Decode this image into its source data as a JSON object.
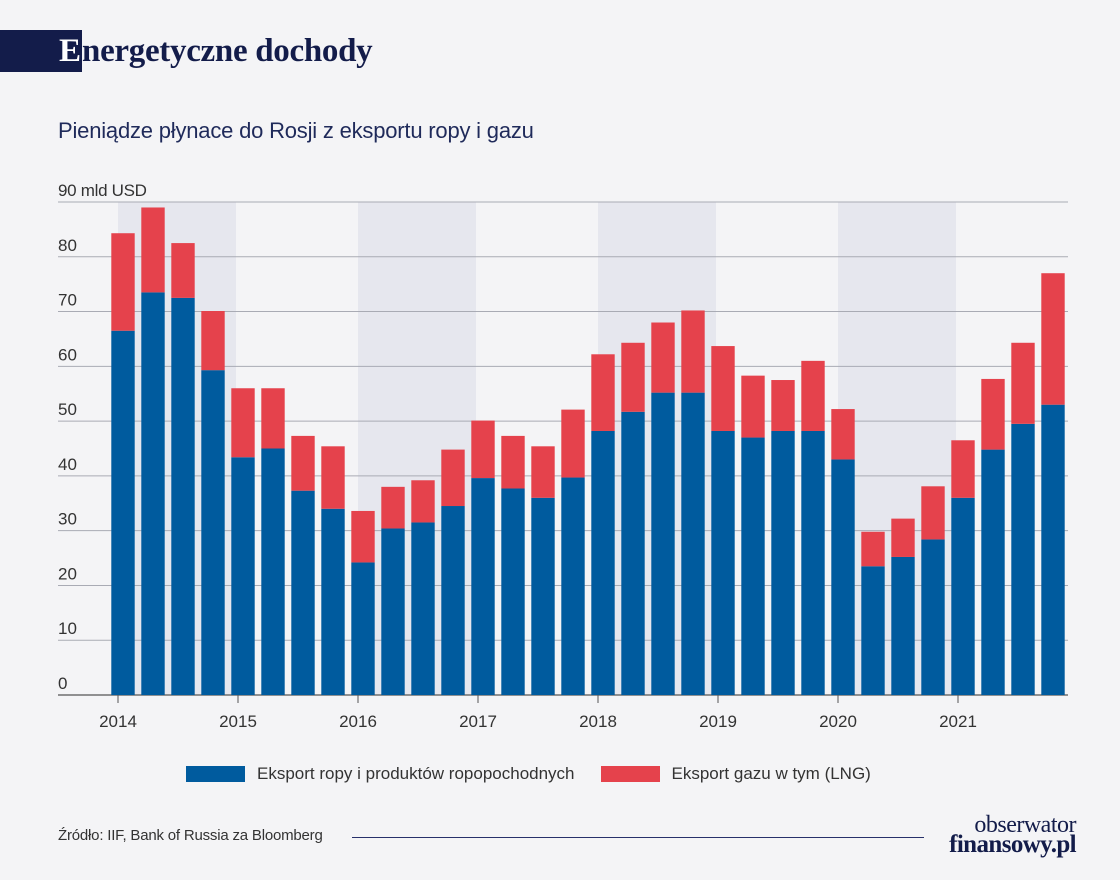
{
  "header": {
    "title_first_letter": "E",
    "title_rest": "nergetyczne dochody",
    "subtitle": "Pieniądze płynace do Rosji z eksportu ropy i gazu"
  },
  "chart_data": {
    "type": "bar",
    "stacked": true,
    "unit_label": "90 mld USD",
    "ylim": [
      0,
      90
    ],
    "yticks": [
      "0",
      "10",
      "20",
      "30",
      "40",
      "50",
      "60",
      "70",
      "80"
    ],
    "xticks": [
      "2014",
      "2015",
      "2016",
      "2017",
      "2018",
      "2019",
      "2020",
      "2021"
    ],
    "grid": true,
    "shaded_years": [
      "2014",
      "2016",
      "2018",
      "2020"
    ],
    "categories": [
      "2014 Q1",
      "2014 Q2",
      "2014 Q3",
      "2014 Q4",
      "2015 Q1",
      "2015 Q2",
      "2015 Q3",
      "2015 Q4",
      "2016 Q1",
      "2016 Q2",
      "2016 Q3",
      "2016 Q4",
      "2017 Q1",
      "2017 Q2",
      "2017 Q3",
      "2017 Q4",
      "2018 Q1",
      "2018 Q2",
      "2018 Q3",
      "2018 Q4",
      "2019 Q1",
      "2019 Q2",
      "2019 Q3",
      "2019 Q4",
      "2020 Q1",
      "2020 Q2",
      "2020 Q3",
      "2020 Q4",
      "2021 Q1",
      "2021 Q2",
      "2021 Q3",
      "2021 Q4"
    ],
    "series": [
      {
        "name": "Eksport ropy i produktów ropopochodnych",
        "color": "#005b9e",
        "values": [
          66.5,
          73.5,
          72.5,
          59.3,
          43.4,
          45.0,
          37.3,
          34.0,
          24.2,
          30.4,
          31.5,
          34.5,
          39.6,
          37.7,
          36.0,
          39.7,
          48.2,
          51.7,
          55.2,
          55.2,
          48.2,
          47.0,
          48.2,
          48.2,
          43.0,
          23.5,
          25.2,
          28.4,
          36.0,
          44.8,
          49.5,
          53.0
        ]
      },
      {
        "name": "Eksport gazu w tym (LNG)",
        "color": "#e5424c",
        "values": [
          17.8,
          15.5,
          10.0,
          10.8,
          12.6,
          11.0,
          10.0,
          11.4,
          9.4,
          7.6,
          7.7,
          10.3,
          10.5,
          9.6,
          9.4,
          12.4,
          14.0,
          12.6,
          12.8,
          15.0,
          15.5,
          11.3,
          9.3,
          12.8,
          9.2,
          6.3,
          7.0,
          9.7,
          10.5,
          12.9,
          14.8,
          24.0
        ]
      }
    ]
  },
  "legend": {
    "items": [
      {
        "label": "Eksport ropy i produktów ropopochodnych",
        "color": "#005b9e"
      },
      {
        "label": "Eksport gazu w tym (LNG)",
        "color": "#e5424c"
      }
    ]
  },
  "footer": {
    "source": "Źródło: IIF, Bank of Russia za Bloomberg",
    "logo_top": "obserwator",
    "logo_bottom": "finansowy.pl"
  }
}
